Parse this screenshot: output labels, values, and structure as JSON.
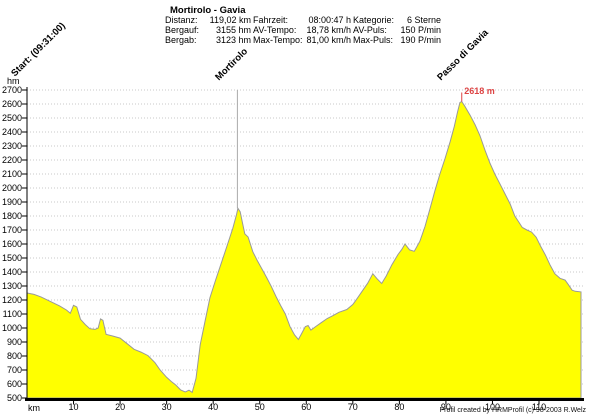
{
  "header": {
    "title": "Mortirolo - Gavia",
    "columns": [
      {
        "rows": [
          {
            "label": "Distanz:",
            "value": "119,02 km"
          },
          {
            "label": "Bergauf:",
            "value": "3155 hm"
          },
          {
            "label": "Bergab:",
            "value": "3123 hm"
          }
        ]
      },
      {
        "rows": [
          {
            "label": "Fahrzeit:",
            "value": "08:00:47 h"
          },
          {
            "label": "AV-Tempo:",
            "value": "18,78 km/h"
          },
          {
            "label": "Max-Tempo:",
            "value": "81,00 km/h"
          }
        ]
      },
      {
        "rows": [
          {
            "label": "Kategorie:",
            "value": "6 Sterne"
          },
          {
            "label": "AV-Puls:",
            "value": "150 P/min"
          },
          {
            "label": "Max-Puls:",
            "value": "190 P/min"
          }
        ]
      }
    ]
  },
  "annotations": {
    "start_label": "Start: (09:31:00)",
    "mortirolo_label": "Mortirolo",
    "gavia_label": "Passo di Gavia",
    "summit_label": "2618 m"
  },
  "axes": {
    "y_unit": "hm",
    "x_unit": "km"
  },
  "footer": {
    "credit": "Profil created by HRMProfil (c) 98-2003 R.Welz"
  },
  "colors": {
    "profile_fill": "#ffff00",
    "profile_outline": "#999999",
    "gridline": "#c9c9c9",
    "axis": "#000000",
    "marker_line": "#aaaaaa",
    "summit_label": "#dd4444",
    "background": "#ffffff"
  },
  "chart_data": {
    "type": "area",
    "title": "Mortirolo - Gavia",
    "xlabel": "km",
    "ylabel": "hm",
    "xlim": [
      0,
      119.02
    ],
    "ylim": [
      500,
      2700
    ],
    "x_ticks": [
      10,
      20,
      30,
      40,
      50,
      60,
      70,
      80,
      90,
      100,
      110
    ],
    "y_ticks": [
      500,
      600,
      700,
      800,
      900,
      1000,
      1100,
      1200,
      1300,
      1400,
      1500,
      1600,
      1700,
      1800,
      1900,
      2000,
      2100,
      2200,
      2300,
      2400,
      2500,
      2600,
      2700
    ],
    "grid": "horizontal-dotted",
    "legend": "none",
    "fill_color": "#ffff00",
    "line_color": "#999999",
    "marker_line_km": 45.2,
    "summits": [
      {
        "name": "Mortirolo",
        "km": 45.3,
        "elevation": 1855
      },
      {
        "name": "Passo di Gavia",
        "km": 93.4,
        "elevation": 2618,
        "label": "2618 m",
        "label_color": "#dd4444"
      }
    ],
    "points": [
      [
        0,
        1250
      ],
      [
        1.5,
        1240
      ],
      [
        3,
        1222
      ],
      [
        5,
        1190
      ],
      [
        7,
        1158
      ],
      [
        8.5,
        1128
      ],
      [
        9.3,
        1105
      ],
      [
        10,
        1162
      ],
      [
        10.7,
        1150
      ],
      [
        11.5,
        1062
      ],
      [
        12.5,
        1025
      ],
      [
        13.5,
        995
      ],
      [
        14.6,
        990
      ],
      [
        15.3,
        1000
      ],
      [
        15.8,
        1065
      ],
      [
        16.3,
        1055
      ],
      [
        17,
        955
      ],
      [
        18.5,
        942
      ],
      [
        20,
        928
      ],
      [
        21.5,
        888
      ],
      [
        23,
        848
      ],
      [
        24.5,
        828
      ],
      [
        26,
        803
      ],
      [
        27.5,
        752
      ],
      [
        28.6,
        700
      ],
      [
        30,
        648
      ],
      [
        31,
        618
      ],
      [
        32,
        592
      ],
      [
        33,
        558
      ],
      [
        34,
        543
      ],
      [
        34.8,
        556
      ],
      [
        35.5,
        540
      ],
      [
        36.3,
        640
      ],
      [
        37.2,
        880
      ],
      [
        38.2,
        1040
      ],
      [
        39.3,
        1215
      ],
      [
        40.5,
        1340
      ],
      [
        41.8,
        1470
      ],
      [
        43,
        1590
      ],
      [
        44.2,
        1710
      ],
      [
        45,
        1810
      ],
      [
        45.3,
        1855
      ],
      [
        45.8,
        1830
      ],
      [
        46.3,
        1750
      ],
      [
        46.8,
        1672
      ],
      [
        47.5,
        1650
      ],
      [
        48.5,
        1545
      ],
      [
        49.5,
        1480
      ],
      [
        50.5,
        1420
      ],
      [
        51.5,
        1360
      ],
      [
        52.5,
        1295
      ],
      [
        53.5,
        1225
      ],
      [
        54.5,
        1160
      ],
      [
        55.5,
        1100
      ],
      [
        56.5,
        1010
      ],
      [
        57.5,
        950
      ],
      [
        58.3,
        918
      ],
      [
        59,
        960
      ],
      [
        59.8,
        1010
      ],
      [
        60.4,
        1018
      ],
      [
        61,
        985
      ],
      [
        62,
        1010
      ],
      [
        63.2,
        1038
      ],
      [
        64.5,
        1068
      ],
      [
        65.7,
        1088
      ],
      [
        67,
        1112
      ],
      [
        68.7,
        1132
      ],
      [
        70,
        1168
      ],
      [
        70.8,
        1205
      ],
      [
        72,
        1262
      ],
      [
        73.2,
        1320
      ],
      [
        74.3,
        1388
      ],
      [
        75.2,
        1352
      ],
      [
        76.2,
        1318
      ],
      [
        77.2,
        1372
      ],
      [
        78.4,
        1452
      ],
      [
        79.7,
        1525
      ],
      [
        80.5,
        1560
      ],
      [
        81.2,
        1600
      ],
      [
        82.2,
        1558
      ],
      [
        83.2,
        1548
      ],
      [
        84.4,
        1620
      ],
      [
        85.5,
        1725
      ],
      [
        86.6,
        1855
      ],
      [
        87.6,
        1975
      ],
      [
        88.7,
        2100
      ],
      [
        89.8,
        2210
      ],
      [
        90.9,
        2330
      ],
      [
        91.8,
        2440
      ],
      [
        92.5,
        2545
      ],
      [
        93,
        2610
      ],
      [
        93.4,
        2618
      ],
      [
        94,
        2588
      ],
      [
        95.2,
        2520
      ],
      [
        96.3,
        2450
      ],
      [
        97.3,
        2375
      ],
      [
        98.4,
        2270
      ],
      [
        99.5,
        2175
      ],
      [
        100.5,
        2100
      ],
      [
        101.6,
        2030
      ],
      [
        102.7,
        1958
      ],
      [
        103.8,
        1885
      ],
      [
        104.8,
        1800
      ],
      [
        105.6,
        1760
      ],
      [
        106.4,
        1718
      ],
      [
        107.4,
        1700
      ],
      [
        108.4,
        1685
      ],
      [
        109.4,
        1648
      ],
      [
        110.4,
        1580
      ],
      [
        111.4,
        1520
      ],
      [
        112.4,
        1448
      ],
      [
        113.4,
        1388
      ],
      [
        114.5,
        1355
      ],
      [
        115.6,
        1342
      ],
      [
        116.3,
        1310
      ],
      [
        117.1,
        1270
      ],
      [
        117.8,
        1262
      ],
      [
        119.02,
        1258
      ]
    ]
  }
}
